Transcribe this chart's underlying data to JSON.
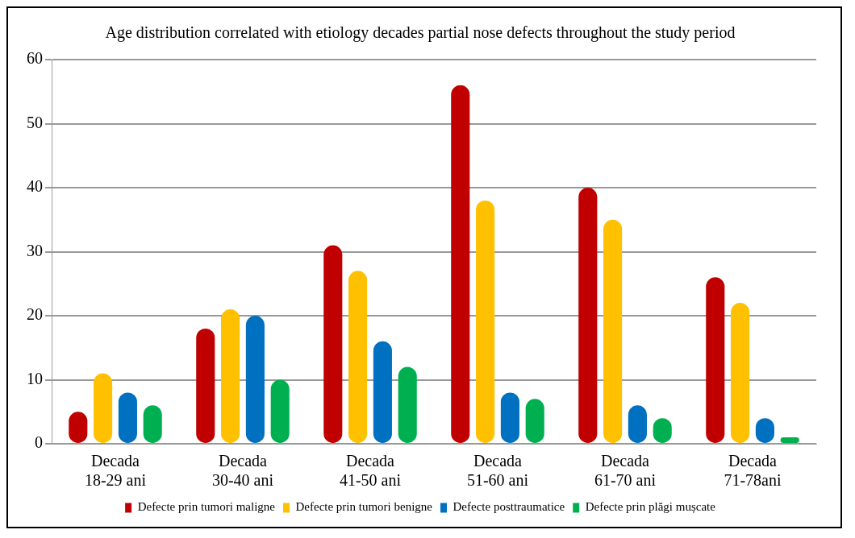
{
  "chart_data": {
    "type": "bar",
    "title": "Age distribution correlated with etiology decades partial nose defects throughout the study period",
    "categories": [
      "Decada 18-29 ani",
      "Decada 30-40 ani",
      "Decada 41-50 ani",
      "Decada 51-60 ani",
      "Decada 61-70 ani",
      "Decada 71-78ani"
    ],
    "series": [
      {
        "name": "Defecte prin tumori maligne",
        "color": "#c00000",
        "values": [
          5,
          18,
          31,
          56,
          40,
          26
        ]
      },
      {
        "name": "Defecte prin tumori benigne",
        "color": "#ffc000",
        "values": [
          11,
          21,
          27,
          38,
          35,
          22
        ]
      },
      {
        "name": "Defecte posttraumatice",
        "color": "#0070c0",
        "values": [
          8,
          20,
          16,
          8,
          6,
          4
        ]
      },
      {
        "name": "Defecte prin plăgi mușcate",
        "color": "#00b050",
        "values": [
          6,
          10,
          12,
          7,
          4,
          1
        ]
      }
    ],
    "ylim": [
      0,
      60
    ],
    "yticks": [
      0,
      10,
      20,
      30,
      40,
      50,
      60
    ],
    "grid": "y",
    "legend": "bottom"
  }
}
